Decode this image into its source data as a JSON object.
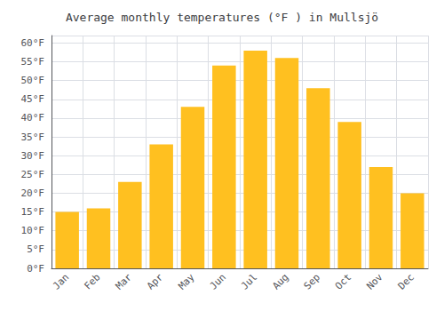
{
  "chart_data": {
    "type": "bar",
    "title": "Average monthly temperatures (°F ) in Mullsjö",
    "categories": [
      "Jan",
      "Feb",
      "Mar",
      "Apr",
      "May",
      "Jun",
      "Jul",
      "Aug",
      "Sep",
      "Oct",
      "Nov",
      "Dec"
    ],
    "values": [
      15,
      16,
      23,
      33,
      43,
      54,
      58,
      56,
      48,
      39,
      27,
      20
    ],
    "color": "#FFC020",
    "ylim": [
      0,
      62
    ],
    "yticks": [
      {
        "value": 0,
        "label": "0°F"
      },
      {
        "value": 5,
        "label": "5°F"
      },
      {
        "value": 10,
        "label": "10°F"
      },
      {
        "value": 15,
        "label": "15°F"
      },
      {
        "value": 20,
        "label": "20°F"
      },
      {
        "value": 25,
        "label": "25°F"
      },
      {
        "value": 30,
        "label": "30°F"
      },
      {
        "value": 35,
        "label": "35°F"
      },
      {
        "value": 40,
        "label": "40°F"
      },
      {
        "value": 45,
        "label": "45°F"
      },
      {
        "value": 50,
        "label": "50°F"
      },
      {
        "value": 55,
        "label": "55°F"
      },
      {
        "value": 60,
        "label": "60°F"
      }
    ],
    "grid": true
  }
}
